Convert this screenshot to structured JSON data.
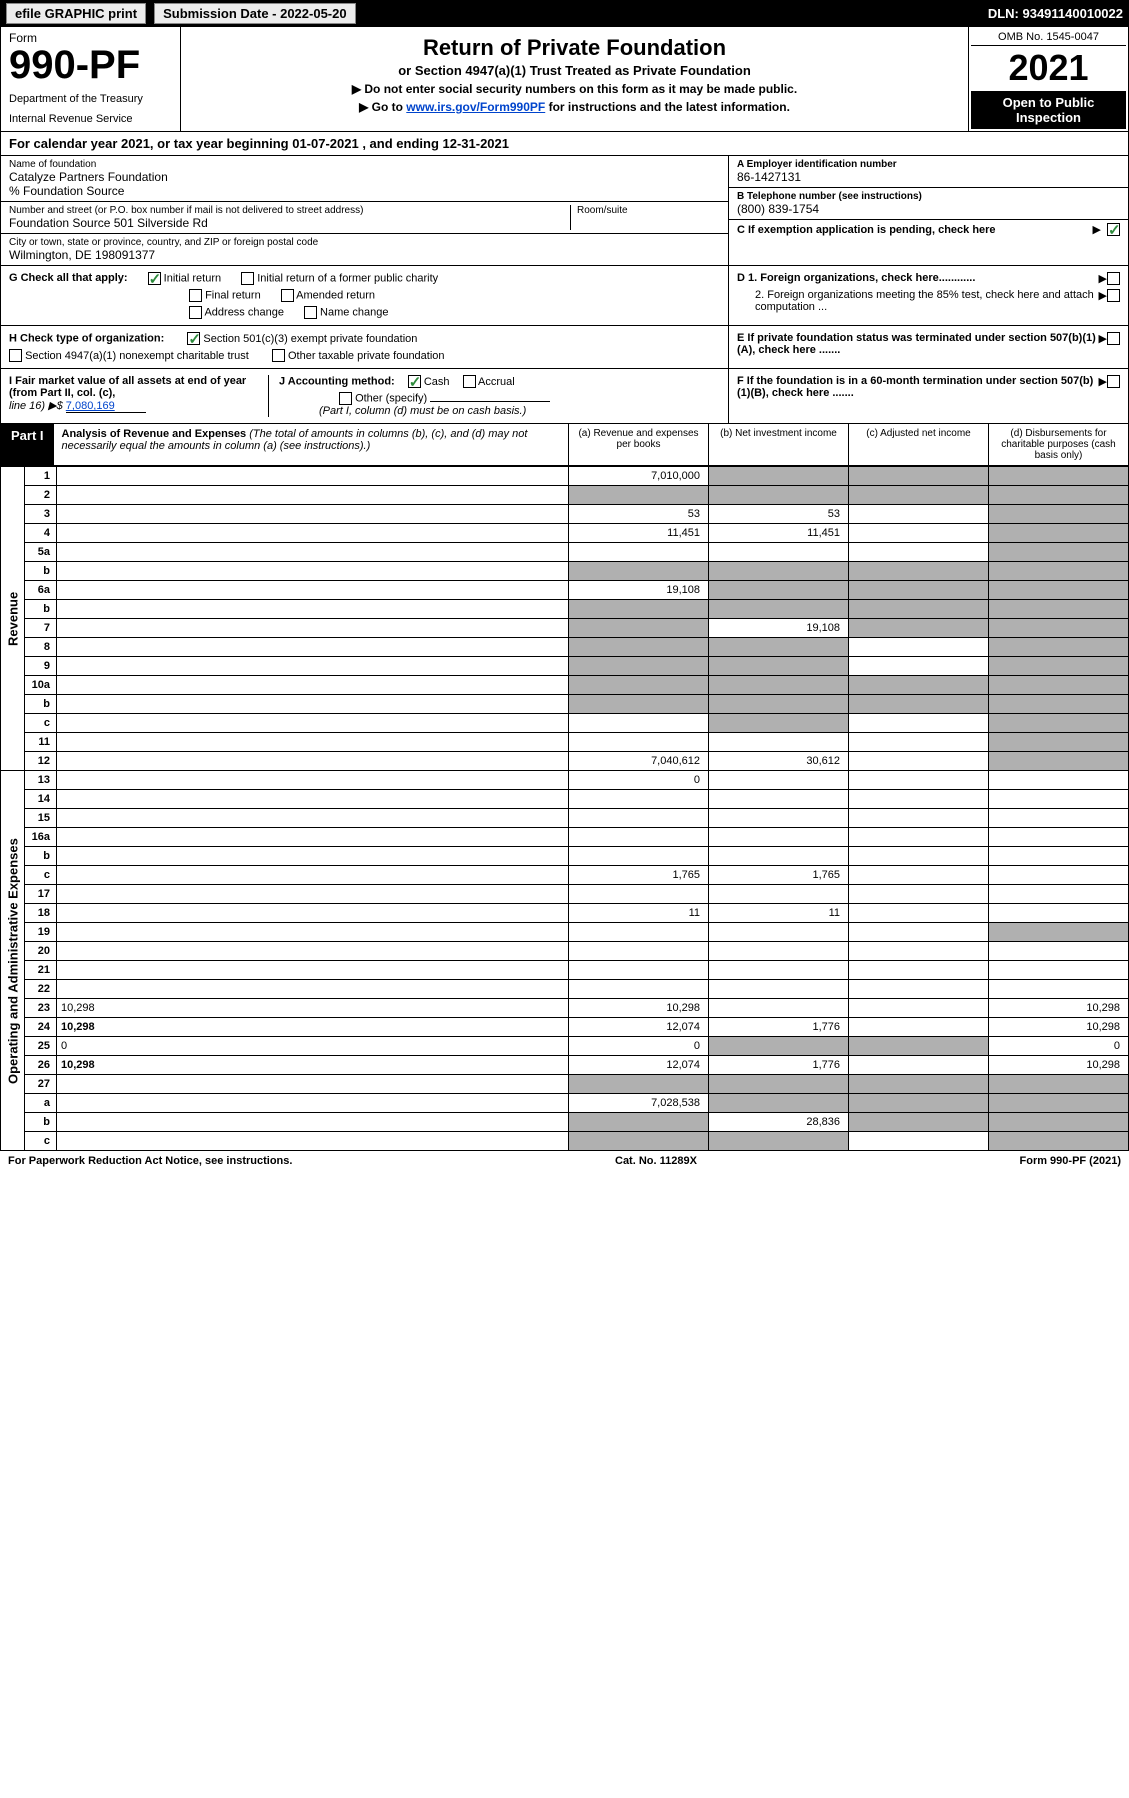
{
  "topbar": {
    "efile": "efile GRAPHIC print",
    "subdate_label": "Submission Date - 2022-05-20",
    "dln": "DLN: 93491140010022"
  },
  "header": {
    "form_word": "Form",
    "form_num": "990-PF",
    "dept": "Department of the Treasury",
    "irs": "Internal Revenue Service",
    "title": "Return of Private Foundation",
    "subtitle": "or Section 4947(a)(1) Trust Treated as Private Foundation",
    "note1": "▶ Do not enter social security numbers on this form as it may be made public.",
    "note2_pre": "▶ Go to ",
    "note2_link": "www.irs.gov/Form990PF",
    "note2_post": " for instructions and the latest information.",
    "omb": "OMB No. 1545-0047",
    "year": "2021",
    "ofp": "Open to Public Inspection"
  },
  "calyear": "For calendar year 2021, or tax year beginning 01-07-2021                              , and ending 12-31-2021",
  "ident": {
    "name_lbl": "Name of foundation",
    "name": "Catalyze Partners Foundation",
    "care": "% Foundation Source",
    "addr_lbl": "Number and street (or P.O. box number if mail is not delivered to street address)",
    "addr": "Foundation Source 501 Silverside Rd",
    "room_lbl": "Room/suite",
    "city_lbl": "City or town, state or province, country, and ZIP or foreign postal code",
    "city": "Wilmington, DE  198091377",
    "a_lbl": "A Employer identification number",
    "a_val": "86-1427131",
    "b_lbl": "B Telephone number (see instructions)",
    "b_val": "(800) 839-1754",
    "c_lbl": "C If exemption application is pending, check here"
  },
  "g": {
    "label": "G Check all that apply:",
    "initial": "Initial return",
    "initial_former": "Initial return of a former public charity",
    "final": "Final return",
    "amended": "Amended return",
    "addr_change": "Address change",
    "name_change": "Name change",
    "d1": "D 1. Foreign organizations, check here............",
    "d2": "2. Foreign organizations meeting the 85% test, check here and attach computation ...",
    "e": "E  If private foundation status was terminated under section 507(b)(1)(A), check here .......",
    "f": "F  If the foundation is in a 60-month termination under section 507(b)(1)(B), check here ......."
  },
  "h": {
    "label": "H Check type of organization:",
    "s501": "Section 501(c)(3) exempt private foundation",
    "s4947": "Section 4947(a)(1) nonexempt charitable trust",
    "other_tax": "Other taxable private foundation"
  },
  "i": {
    "label": "I Fair market value of all assets at end of year (from Part II, col. (c),",
    "line": "line 16) ▶$",
    "val": "7,080,169"
  },
  "j": {
    "label": "J Accounting method:",
    "cash": "Cash",
    "accrual": "Accrual",
    "other": "Other (specify)",
    "note": "(Part I, column (d) must be on cash basis.)"
  },
  "part1": {
    "tag": "Part I",
    "title": "Analysis of Revenue and Expenses",
    "title_note": "(The total of amounts in columns (b), (c), and (d) may not necessarily equal the amounts in column (a) (see instructions).)",
    "col_a": "(a)  Revenue and expenses per books",
    "col_b": "(b)  Net investment income",
    "col_c": "(c)  Adjusted net income",
    "col_d": "(d)  Disbursements for charitable purposes (cash basis only)"
  },
  "sidelabels": {
    "revenue": "Revenue",
    "opex": "Operating and Administrative Expenses"
  },
  "rows": {
    "r1": {
      "n": "1",
      "d": "",
      "a": "7,010,000",
      "b": "",
      "c": "",
      "grey": [
        "b",
        "c",
        "d"
      ]
    },
    "r2": {
      "n": "2",
      "d": "",
      "a": "",
      "b": "",
      "c": "",
      "grey": [
        "a",
        "b",
        "c",
        "d"
      ]
    },
    "r3": {
      "n": "3",
      "d": "",
      "a": "53",
      "b": "53",
      "c": "",
      "grey": [
        "d"
      ]
    },
    "r4": {
      "n": "4",
      "d": "",
      "a": "11,451",
      "b": "11,451",
      "c": "",
      "grey": [
        "d"
      ]
    },
    "r5a": {
      "n": "5a",
      "d": "",
      "a": "",
      "b": "",
      "c": "",
      "grey": [
        "d"
      ]
    },
    "r5b": {
      "n": "b",
      "d": "",
      "a": "",
      "b": "",
      "c": "",
      "grey": [
        "a",
        "b",
        "c",
        "d"
      ]
    },
    "r6a": {
      "n": "6a",
      "d": "",
      "a": "19,108",
      "b": "",
      "c": "",
      "grey": [
        "b",
        "c",
        "d"
      ]
    },
    "r6b": {
      "n": "b",
      "d": "",
      "a": "",
      "b": "",
      "c": "",
      "grey": [
        "a",
        "b",
        "c",
        "d"
      ]
    },
    "r7": {
      "n": "7",
      "d": "",
      "a": "",
      "b": "19,108",
      "c": "",
      "grey": [
        "a",
        "c",
        "d"
      ]
    },
    "r8": {
      "n": "8",
      "d": "",
      "a": "",
      "b": "",
      "c": "",
      "grey": [
        "a",
        "b",
        "d"
      ]
    },
    "r9": {
      "n": "9",
      "d": "",
      "a": "",
      "b": "",
      "c": "",
      "grey": [
        "a",
        "b",
        "d"
      ]
    },
    "r10a": {
      "n": "10a",
      "d": "",
      "a": "",
      "b": "",
      "c": "",
      "grey": [
        "a",
        "b",
        "c",
        "d"
      ]
    },
    "r10b": {
      "n": "b",
      "d": "",
      "a": "",
      "b": "",
      "c": "",
      "grey": [
        "a",
        "b",
        "c",
        "d"
      ]
    },
    "r10c": {
      "n": "c",
      "d": "",
      "a": "",
      "b": "",
      "c": "",
      "grey": [
        "b",
        "d"
      ]
    },
    "r11": {
      "n": "11",
      "d": "",
      "a": "",
      "b": "",
      "c": "",
      "grey": [
        "d"
      ]
    },
    "r12": {
      "n": "12",
      "d": "",
      "a": "7,040,612",
      "b": "30,612",
      "c": "",
      "grey": [
        "d"
      ],
      "bold": true
    },
    "r13": {
      "n": "13",
      "d": "",
      "a": "0",
      "b": "",
      "c": ""
    },
    "r14": {
      "n": "14",
      "d": "",
      "a": "",
      "b": "",
      "c": ""
    },
    "r15": {
      "n": "15",
      "d": "",
      "a": "",
      "b": "",
      "c": ""
    },
    "r16a": {
      "n": "16a",
      "d": "",
      "a": "",
      "b": "",
      "c": ""
    },
    "r16b": {
      "n": "b",
      "d": "",
      "a": "",
      "b": "",
      "c": ""
    },
    "r16c": {
      "n": "c",
      "d": "",
      "a": "1,765",
      "b": "1,765",
      "c": ""
    },
    "r17": {
      "n": "17",
      "d": "",
      "a": "",
      "b": "",
      "c": ""
    },
    "r18": {
      "n": "18",
      "d": "",
      "a": "11",
      "b": "11",
      "c": ""
    },
    "r19": {
      "n": "19",
      "d": "",
      "a": "",
      "b": "",
      "c": "",
      "grey": [
        "d"
      ]
    },
    "r20": {
      "n": "20",
      "d": "",
      "a": "",
      "b": "",
      "c": ""
    },
    "r21": {
      "n": "21",
      "d": "",
      "a": "",
      "b": "",
      "c": ""
    },
    "r22": {
      "n": "22",
      "d": "",
      "a": "",
      "b": "",
      "c": ""
    },
    "r23": {
      "n": "23",
      "d": "10,298",
      "a": "10,298",
      "b": "",
      "c": ""
    },
    "r24": {
      "n": "24",
      "d": "10,298",
      "a": "12,074",
      "b": "1,776",
      "c": "",
      "bold": true
    },
    "r25": {
      "n": "25",
      "d": "0",
      "a": "0",
      "b": "",
      "c": "",
      "grey": [
        "b",
        "c"
      ]
    },
    "r26": {
      "n": "26",
      "d": "10,298",
      "a": "12,074",
      "b": "1,776",
      "c": "",
      "bold": true
    },
    "r27": {
      "n": "27",
      "d": "",
      "a": "",
      "b": "",
      "c": "",
      "grey": [
        "a",
        "b",
        "c",
        "d"
      ]
    },
    "r27a": {
      "n": "a",
      "d": "",
      "a": "7,028,538",
      "b": "",
      "c": "",
      "grey": [
        "b",
        "c",
        "d"
      ],
      "bold": true
    },
    "r27b": {
      "n": "b",
      "d": "",
      "a": "",
      "b": "28,836",
      "c": "",
      "grey": [
        "a",
        "c",
        "d"
      ],
      "bold": true
    },
    "r27c": {
      "n": "c",
      "d": "",
      "a": "",
      "b": "",
      "c": "",
      "grey": [
        "a",
        "b",
        "d"
      ],
      "bold": true
    }
  },
  "footer": {
    "left": "For Paperwork Reduction Act Notice, see instructions.",
    "mid": "Cat. No. 11289X",
    "right": "Form 990-PF (2021)"
  }
}
